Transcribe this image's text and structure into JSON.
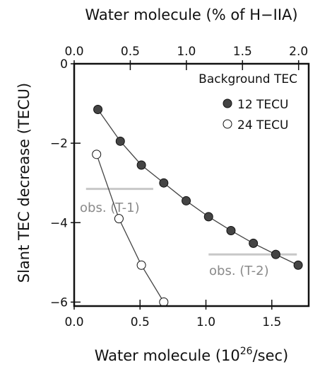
{
  "chart_data": {
    "type": "scatter",
    "title": "",
    "xlabel_bottom_prefix": "Water molecule (10",
    "xlabel_bottom_exp": "26",
    "xlabel_bottom_suffix": "/sec)",
    "xlabel_top": "Water molecule (% of H−IIA)",
    "ylabel": "Slant TEC decrease (TECU)",
    "xlim": [
      0.0,
      1.78
    ],
    "ylim": [
      -6.1,
      0
    ],
    "xlim_top": [
      0.0,
      2.09
    ],
    "x_ticks": [
      "0.0",
      "0.5",
      "1.0",
      "1.5"
    ],
    "x_tick_values": [
      0.0,
      0.5,
      1.0,
      1.5
    ],
    "x_top_ticks": [
      "0.0",
      "0.5",
      "1.0",
      "1.5",
      "2.0"
    ],
    "x_top_tick_values": [
      0.0,
      0.5,
      1.0,
      1.5,
      2.0
    ],
    "y_ticks": [
      "0",
      "−2",
      "−4",
      "−6"
    ],
    "y_tick_values": [
      0,
      -2,
      -4,
      -6
    ],
    "grid": false,
    "legend_title": "Background TEC",
    "legend_position": "top-right",
    "series": [
      {
        "name": "12 TECU",
        "marker": "filled-circle",
        "x": [
          0.18,
          0.35,
          0.51,
          0.68,
          0.85,
          1.02,
          1.19,
          1.36,
          1.53,
          1.7
        ],
        "y": [
          -1.15,
          -1.95,
          -2.55,
          -3.0,
          -3.45,
          -3.85,
          -4.2,
          -4.52,
          -4.8,
          -5.07
        ]
      },
      {
        "name": "24 TECU",
        "marker": "open-circle",
        "x": [
          0.17,
          0.34,
          0.51,
          0.68
        ],
        "y": [
          -2.28,
          -3.9,
          -5.07,
          -6.0
        ]
      }
    ],
    "annotations": [
      {
        "text": "obs. (T-1)",
        "y": -3.15,
        "x_range": [
          0.09,
          0.6
        ]
      },
      {
        "text": "obs. (T-2)",
        "y": -4.8,
        "x_range": [
          1.02,
          1.69
        ]
      }
    ],
    "colors": {
      "axis": "#111111",
      "series": "#444444",
      "obs_line": "#c8c8c8",
      "obs_text": "#8a8a8a"
    }
  }
}
